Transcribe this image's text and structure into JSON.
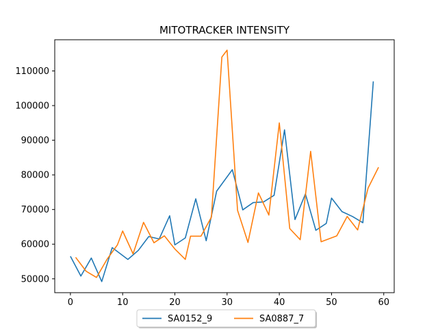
{
  "chart_data": {
    "type": "line",
    "title": "MITOTRACKER INTENSITY",
    "xlabel": "",
    "ylabel": "",
    "xlim": [
      -3,
      62
    ],
    "ylim": [
      46000,
      119000
    ],
    "x_ticks": [
      0,
      10,
      20,
      30,
      40,
      50,
      60
    ],
    "y_ticks": [
      50000,
      60000,
      70000,
      80000,
      90000,
      100000,
      110000
    ],
    "grid": false,
    "legend_position": "bottom-center",
    "series": [
      {
        "name": "SA0152_9",
        "color": "#1f77b4",
        "x": [
          0,
          2,
          4,
          6,
          8,
          11,
          13,
          15,
          17,
          19,
          20,
          22,
          24,
          26,
          28,
          31,
          33,
          35,
          37,
          39,
          41,
          43,
          45,
          47,
          49,
          50,
          52,
          54,
          56,
          58
        ],
        "y": [
          56500,
          50800,
          56000,
          49200,
          59000,
          55600,
          58200,
          62200,
          61500,
          68200,
          59800,
          61800,
          73100,
          61000,
          75300,
          81500,
          69900,
          72000,
          72200,
          74100,
          93000,
          67100,
          74500,
          64000,
          66000,
          73300,
          69400,
          68000,
          66200,
          107000
        ]
      },
      {
        "name": "SA0887_7",
        "color": "#ff7f0e",
        "x": [
          1,
          3,
          5,
          7,
          9,
          10,
          12,
          14,
          16,
          18,
          20,
          22,
          23,
          25,
          27,
          29,
          30,
          32,
          34,
          36,
          38,
          40,
          42,
          44,
          46,
          48,
          51,
          53,
          55,
          57,
          59
        ],
        "y": [
          56200,
          52200,
          50400,
          55600,
          59800,
          63800,
          57200,
          66300,
          60400,
          62400,
          58600,
          55600,
          62300,
          62300,
          67800,
          114000,
          116000,
          69800,
          60500,
          74800,
          68400,
          95000,
          64500,
          61300,
          86800,
          60700,
          62400,
          68000,
          64100,
          76200,
          82200
        ]
      }
    ]
  }
}
